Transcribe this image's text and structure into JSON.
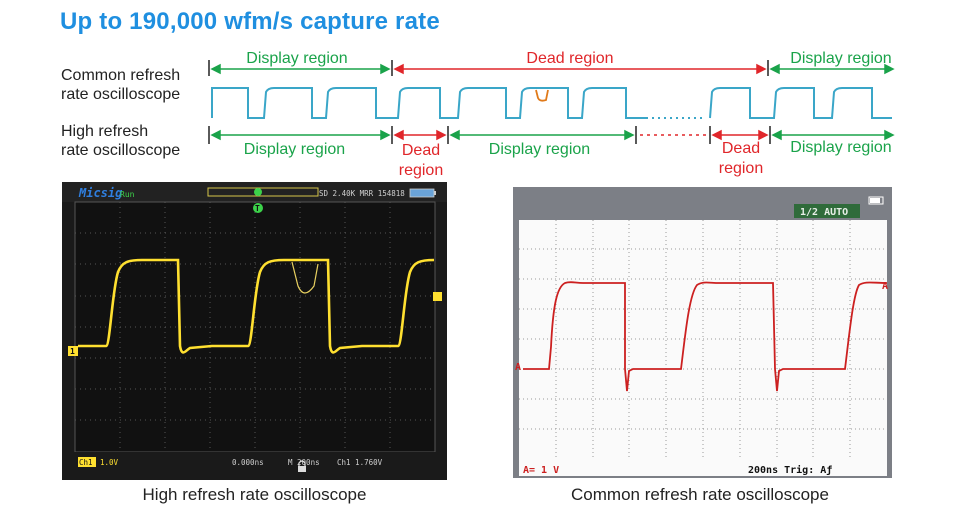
{
  "headline": "Up to 190,000 wfm/s  capture  rate",
  "timing_diagram": {
    "common_row_label_line1": "Common refresh",
    "common_row_label_line2": "rate oscilloscope",
    "high_row_label_line1": "High refresh",
    "high_row_label_line2": "rate oscilloscope",
    "common_segments": {
      "display_left": "Display region",
      "dead_center": "Dead region",
      "display_right": "Display region"
    },
    "high_segments": {
      "display_1": "Display region",
      "dead_1_line1": "Dead",
      "dead_1_line2": "region",
      "display_2": "Display region",
      "dead_2_line1": "Dead",
      "dead_2_line2": "region",
      "display_3": "Display region"
    },
    "colors": {
      "green": "#1aa34a",
      "red": "#e0262a",
      "wave": "#3aa6c8"
    }
  },
  "high_scope": {
    "brand": "Micsig",
    "run_state": "Run",
    "top_status": "SD 2.40K MRR 154818",
    "trigger_marker": "T",
    "channel_marker": "1",
    "ch_label": "Ch1",
    "ch_scale": "1.0V",
    "time_offset": "0.000ns",
    "time_base": "M  200ns",
    "trigger_info": "Ch1  1.760V",
    "trace_color": "#ffe030",
    "lock_icon": "lock-icon",
    "battery_icon": "battery-icon"
  },
  "common_scope": {
    "mode_badge": "1/2 AUTO",
    "channel_marker": "A",
    "ch_scale": "A= 1 V",
    "time_trig": "200ns Trig: Aƒ",
    "trace_color": "#cc2020",
    "battery_icon": "battery-icon"
  },
  "captions": {
    "left": "High refresh rate oscilloscope",
    "right": "Common refresh rate oscilloscope"
  }
}
